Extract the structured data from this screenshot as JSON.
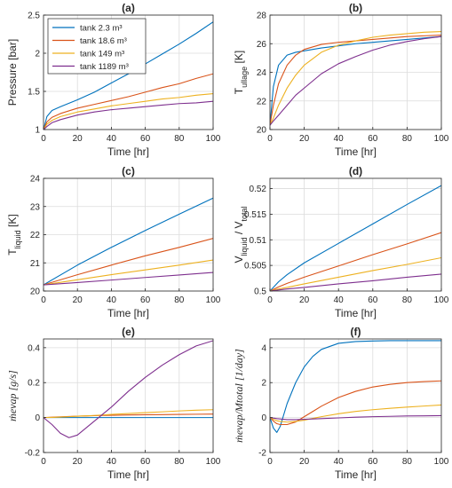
{
  "figure": {
    "panels_layout": "3x2 grid"
  },
  "chart_data": [
    {
      "type": "line",
      "panel": "(a)",
      "title": "(a)",
      "xlabel": "Time [hr]",
      "ylabel": "Pressure [bar]",
      "xlim": [
        0,
        100
      ],
      "ylim": [
        1,
        2.5
      ],
      "xticks": [
        0,
        20,
        40,
        60,
        80,
        100
      ],
      "yticks": [
        1,
        1.5,
        2,
        2.5
      ],
      "grid": true,
      "legend": {
        "location": "top-left",
        "entries": [
          "tank 2.3 m³",
          "tank 18.6 m³",
          "tank 149 m³",
          "tank 1189 m³"
        ]
      },
      "x": [
        0,
        2,
        5,
        10,
        20,
        30,
        40,
        50,
        60,
        70,
        80,
        90,
        100
      ],
      "series": [
        {
          "name": "tank 2.3 m³",
          "color": "#0072BD",
          "values": [
            1.0,
            1.17,
            1.25,
            1.3,
            1.39,
            1.49,
            1.61,
            1.73,
            1.86,
            1.99,
            2.12,
            2.26,
            2.41
          ]
        },
        {
          "name": "tank 18.6 m³",
          "color": "#D95319",
          "values": [
            1.0,
            1.1,
            1.16,
            1.21,
            1.28,
            1.33,
            1.38,
            1.43,
            1.49,
            1.55,
            1.6,
            1.67,
            1.73
          ]
        },
        {
          "name": "tank 149 m³",
          "color": "#EDB120",
          "values": [
            1.0,
            1.07,
            1.12,
            1.17,
            1.23,
            1.27,
            1.31,
            1.34,
            1.37,
            1.4,
            1.42,
            1.45,
            1.47
          ]
        },
        {
          "name": "tank 1189 m³",
          "color": "#7E2F8E",
          "values": [
            1.0,
            1.04,
            1.09,
            1.13,
            1.19,
            1.23,
            1.26,
            1.28,
            1.3,
            1.32,
            1.34,
            1.35,
            1.37
          ]
        }
      ]
    },
    {
      "type": "line",
      "panel": "(b)",
      "title": "(b)",
      "xlabel": "Time [hr]",
      "ylabel": "T",
      "ylabel_subscript": "ullage",
      "ylabel_suffix": " [K]",
      "xlim": [
        0,
        100
      ],
      "ylim": [
        20,
        28
      ],
      "xticks": [
        0,
        20,
        40,
        60,
        80,
        100
      ],
      "yticks": [
        20,
        22,
        24,
        26,
        28
      ],
      "grid": true,
      "x": [
        0,
        2,
        5,
        10,
        15,
        20,
        30,
        40,
        50,
        60,
        70,
        80,
        90,
        100
      ],
      "series": [
        {
          "color": "#0072BD",
          "values": [
            20.3,
            23.0,
            24.5,
            25.2,
            25.4,
            25.5,
            25.7,
            25.85,
            26.0,
            26.1,
            26.2,
            26.3,
            26.4,
            26.5
          ]
        },
        {
          "color": "#D95319",
          "values": [
            20.3,
            21.7,
            23.2,
            24.5,
            25.2,
            25.6,
            25.95,
            26.1,
            26.2,
            26.3,
            26.4,
            26.5,
            26.55,
            26.6
          ]
        },
        {
          "color": "#EDB120",
          "values": [
            20.3,
            20.8,
            21.7,
            22.9,
            23.8,
            24.5,
            25.4,
            25.9,
            26.2,
            26.45,
            26.6,
            26.7,
            26.8,
            26.85
          ]
        },
        {
          "color": "#7E2F8E",
          "values": [
            20.3,
            20.6,
            21.0,
            21.7,
            22.4,
            22.9,
            23.9,
            24.6,
            25.1,
            25.55,
            25.9,
            26.15,
            26.35,
            26.5
          ]
        }
      ]
    },
    {
      "type": "line",
      "panel": "(c)",
      "title": "(c)",
      "xlabel": "Time [hr]",
      "ylabel": "T",
      "ylabel_subscript": "liquid",
      "ylabel_suffix": " [K]",
      "xlim": [
        0,
        100
      ],
      "ylim": [
        20,
        24
      ],
      "xticks": [
        0,
        20,
        40,
        60,
        80,
        100
      ],
      "yticks": [
        20,
        21,
        22,
        23,
        24
      ],
      "grid": true,
      "x": [
        0,
        20,
        40,
        60,
        80,
        100
      ],
      "series": [
        {
          "color": "#0072BD",
          "values": [
            20.22,
            20.92,
            21.55,
            22.15,
            22.73,
            23.3
          ]
        },
        {
          "color": "#D95319",
          "values": [
            20.22,
            20.58,
            20.92,
            21.25,
            21.55,
            21.87
          ]
        },
        {
          "color": "#EDB120",
          "values": [
            20.22,
            20.4,
            20.58,
            20.75,
            20.92,
            21.1
          ]
        },
        {
          "color": "#7E2F8E",
          "values": [
            20.22,
            20.3,
            20.39,
            20.48,
            20.57,
            20.66
          ]
        }
      ]
    },
    {
      "type": "line",
      "panel": "(d)",
      "title": "(d)",
      "xlabel": "Time [hr]",
      "ylabel": "V",
      "ylabel_subscript": "liquid",
      "ylabel_mid": " / V",
      "ylabel_subscript2": "total",
      "xlim": [
        0,
        100
      ],
      "ylim": [
        0.5,
        0.522
      ],
      "xticks": [
        0,
        20,
        40,
        60,
        80,
        100
      ],
      "yticks": [
        0.5,
        0.505,
        0.51,
        0.515,
        0.52
      ],
      "ytick_labels": [
        "0.5",
        "0.505",
        "0.51",
        "0.515",
        "0.52"
      ],
      "grid": true,
      "x": [
        0,
        5,
        10,
        20,
        40,
        60,
        80,
        100
      ],
      "series": [
        {
          "color": "#0072BD",
          "values": [
            0.5,
            0.5018,
            0.5032,
            0.5055,
            0.5093,
            0.5131,
            0.5169,
            0.5206
          ]
        },
        {
          "color": "#D95319",
          "values": [
            0.5,
            0.5008,
            0.5015,
            0.5027,
            0.5049,
            0.5071,
            0.5092,
            0.5114
          ]
        },
        {
          "color": "#EDB120",
          "values": [
            0.5,
            0.5004,
            0.5007,
            0.5014,
            0.5027,
            0.504,
            0.5052,
            0.5065
          ]
        },
        {
          "color": "#7E2F8E",
          "values": [
            0.5,
            0.5002,
            0.5004,
            0.5007,
            0.5014,
            0.502,
            0.5027,
            0.5033
          ]
        }
      ]
    },
    {
      "type": "line",
      "panel": "(e)",
      "title": "(e)",
      "xlabel": "Time [hr]",
      "ylabel": "ṁevap [g/s]",
      "xlim": [
        0,
        100
      ],
      "ylim": [
        -0.2,
        0.45
      ],
      "xticks": [
        0,
        20,
        40,
        60,
        80,
        100
      ],
      "yticks": [
        -0.2,
        0,
        0.2,
        0.4
      ],
      "grid": true,
      "x": [
        0,
        5,
        10,
        15,
        20,
        25,
        30,
        35,
        40,
        50,
        60,
        70,
        80,
        90,
        100
      ],
      "series": [
        {
          "color": "#0072BD",
          "values": [
            0,
            0,
            0,
            0,
            0,
            0,
            0,
            0,
            0,
            0,
            0,
            0,
            0,
            0,
            0
          ]
        },
        {
          "color": "#D95319",
          "values": [
            0,
            0.002,
            0.004,
            0.006,
            0.008,
            0.009,
            0.011,
            0.012,
            0.013,
            0.015,
            0.016,
            0.017,
            0.018,
            0.019,
            0.02
          ]
        },
        {
          "color": "#EDB120",
          "values": [
            0,
            0.001,
            0.003,
            0.005,
            0.008,
            0.01,
            0.012,
            0.015,
            0.018,
            0.023,
            0.028,
            0.033,
            0.038,
            0.042,
            0.045
          ]
        },
        {
          "color": "#7E2F8E",
          "values": [
            0,
            -0.04,
            -0.09,
            -0.115,
            -0.1,
            -0.06,
            -0.02,
            0.02,
            0.06,
            0.15,
            0.23,
            0.3,
            0.36,
            0.41,
            0.44
          ]
        }
      ]
    },
    {
      "type": "line",
      "panel": "(f)",
      "title": "(f)",
      "xlabel": "Time [hr]",
      "ylabel": "ṁevap/Mtotal [1/day]",
      "xlim": [
        0,
        100
      ],
      "ylim": [
        -2,
        4.5
      ],
      "xticks": [
        0,
        20,
        40,
        60,
        80,
        100
      ],
      "yticks": [
        -2,
        0,
        2,
        4
      ],
      "grid": true,
      "x": [
        0,
        2,
        4,
        6,
        10,
        15,
        20,
        25,
        30,
        40,
        50,
        60,
        70,
        80,
        90,
        100
      ],
      "series": [
        {
          "color": "#0072BD",
          "values": [
            0,
            -0.6,
            -0.85,
            -0.5,
            0.8,
            2.0,
            2.9,
            3.5,
            3.9,
            4.25,
            4.35,
            4.38,
            4.4,
            4.4,
            4.4,
            4.4
          ]
        },
        {
          "color": "#D95319",
          "values": [
            0,
            -0.2,
            -0.35,
            -0.4,
            -0.4,
            -0.25,
            0.05,
            0.35,
            0.65,
            1.15,
            1.5,
            1.75,
            1.9,
            2.0,
            2.06,
            2.1
          ]
        },
        {
          "color": "#EDB120",
          "values": [
            0,
            -0.1,
            -0.18,
            -0.22,
            -0.26,
            -0.22,
            -0.15,
            -0.05,
            0.05,
            0.22,
            0.35,
            0.45,
            0.53,
            0.6,
            0.66,
            0.72
          ]
        },
        {
          "color": "#7E2F8E",
          "values": [
            0,
            -0.03,
            -0.06,
            -0.08,
            -0.12,
            -0.12,
            -0.1,
            -0.08,
            -0.06,
            -0.02,
            0.02,
            0.05,
            0.07,
            0.09,
            0.1,
            0.11
          ]
        }
      ]
    }
  ]
}
